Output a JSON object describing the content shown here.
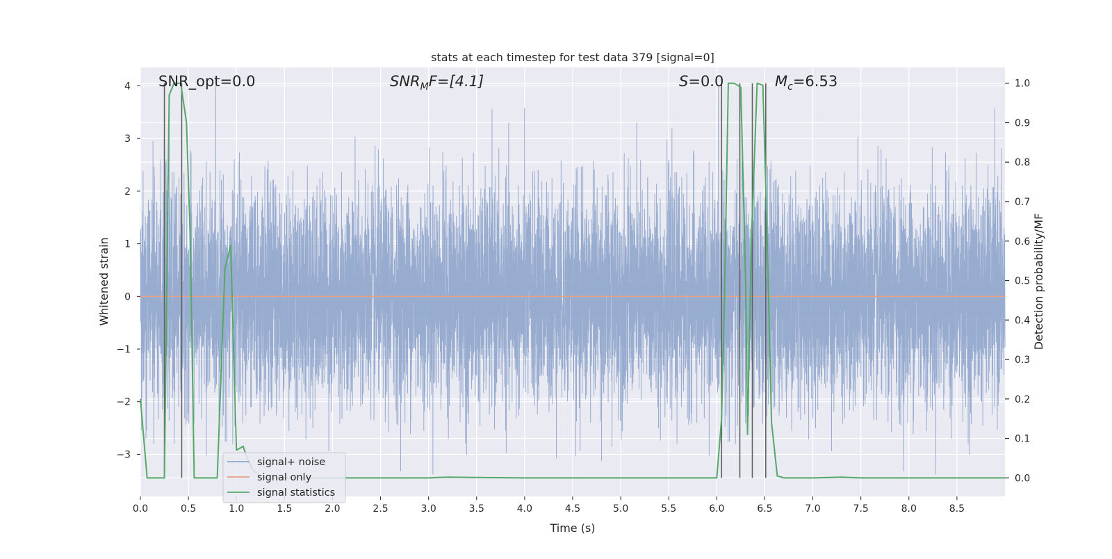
{
  "chart_data": {
    "type": "line",
    "title": "stats at each timestep for test data 379 [signal=0]",
    "xlabel": "Time (s)",
    "ylabel_left": "Whitened strain",
    "ylabel_right": "Detection probability/MF",
    "xlim": [
      0.0,
      9.0
    ],
    "ylim_left": [
      -3.8,
      4.35
    ],
    "ylim_right": [
      -0.047,
      1.04
    ],
    "x_ticks": [
      "0.0",
      "0.5",
      "1.0",
      "1.5",
      "2.0",
      "2.5",
      "3.0",
      "3.5",
      "4.0",
      "4.5",
      "5.0",
      "5.5",
      "6.0",
      "6.5",
      "7.0",
      "7.5",
      "8.0",
      "8.5"
    ],
    "y_ticks_left": [
      "4",
      "3",
      "2",
      "1",
      "0",
      "−1",
      "−2",
      "−3"
    ],
    "y_ticks_right": [
      "1.0",
      "0.9",
      "0.8",
      "0.7",
      "0.6",
      "0.5",
      "0.4",
      "0.3",
      "0.2",
      "0.1",
      "0.0"
    ],
    "grid": true,
    "legend_position": "lower-left",
    "annotations": [
      {
        "text": "SNR_opt=0.0"
      },
      {
        "text": "SNR",
        "sub": "M",
        "suffix": "F=[4.1]"
      },
      {
        "text": "S",
        "suffix": "=0.0"
      },
      {
        "text": "M",
        "sub": "c",
        "suffix": "=6.53"
      }
    ],
    "series": [
      {
        "name": "signal+ noise",
        "color": "#8fa5cc",
        "axis": "left",
        "description_values": "white noise, std ~1.0, peaks up to ~4"
      },
      {
        "name": "signal only",
        "color": "#e8a386",
        "axis": "left",
        "x": [
          0.0,
          9.0
        ],
        "y": [
          0.0,
          0.0
        ]
      },
      {
        "name": "signal statistics",
        "color": "#55a868",
        "axis": "right",
        "x": [
          0.0,
          0.07,
          0.25,
          0.3,
          0.35,
          0.42,
          0.48,
          0.52,
          0.56,
          0.6,
          0.7,
          0.8,
          0.88,
          0.94,
          1.0,
          1.07,
          1.11,
          1.17,
          1.22,
          1.25,
          1.3,
          2.0,
          3.0,
          3.2,
          3.5,
          4.0,
          5.0,
          5.5,
          6.0,
          6.05,
          6.08,
          6.12,
          6.18,
          6.25,
          6.3,
          6.32,
          6.36,
          6.42,
          6.48,
          6.52,
          6.57,
          6.63,
          6.7,
          7.0,
          7.3,
          7.5,
          8.0,
          8.5,
          9.0
        ],
        "y": [
          0.2,
          0.0,
          0.0,
          0.97,
          1.0,
          1.0,
          0.9,
          0.6,
          0.0,
          0.0,
          0.0,
          0.0,
          0.53,
          0.59,
          0.07,
          0.08,
          0.05,
          0.02,
          0.01,
          0.0,
          0.0,
          0.0,
          0.0,
          0.002,
          0.001,
          0.0,
          0.0,
          0.0,
          0.0,
          0.15,
          0.45,
          1.0,
          1.0,
          0.99,
          0.5,
          0.11,
          0.6,
          1.0,
          0.995,
          0.65,
          0.14,
          0.005,
          0.0,
          0.0,
          0.002,
          0.0,
          0.0,
          0.0,
          0.0
        ]
      }
    ],
    "vertical_lines_x": [
      0.25,
      0.43,
      6.05,
      6.24,
      6.37,
      6.51
    ],
    "vertical_line_color": "#606060"
  }
}
